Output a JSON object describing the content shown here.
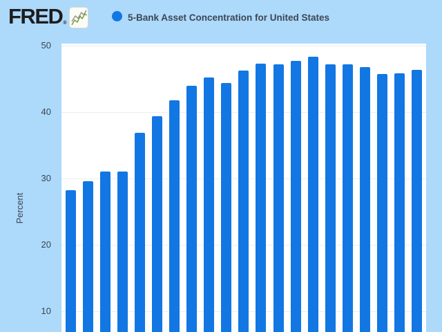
{
  "header": {
    "logo_text": "FRED",
    "registered_mark": "®",
    "logo_icon": "line-chart-icon",
    "legend_marker": "blue-dot"
  },
  "chart_data": {
    "type": "bar",
    "series": [
      {
        "name": "5-Bank Asset Concentration for United States",
        "values": [
          28.2,
          29.6,
          31.0,
          31.0,
          36.9,
          39.4,
          41.8,
          44.0,
          45.2,
          44.4,
          46.2,
          47.3,
          47.2,
          47.7,
          48.3,
          47.2,
          47.2,
          46.8,
          45.7,
          45.8,
          46.4
        ]
      }
    ],
    "ylabel": "Percent",
    "y_ticks": [
      50,
      40,
      30,
      20,
      10
    ],
    "y_axis_visible_range": [
      6.9,
      50.3
    ],
    "x_labels_visible": false,
    "grid": true,
    "legend_position": "top",
    "bar_count": 21
  },
  "colors": {
    "background": "#add9fb",
    "plot_background": "#ffffff",
    "bar": "#1277e3",
    "legend_dot": "#1277e3",
    "gridline": "#eaedef",
    "axis_text": "#3a4550",
    "title_text": "#3b4753",
    "logo_text": "#1d1d1d",
    "logo_icon_green": "#7f9c48",
    "logo_icon_gray": "#9a9a92"
  }
}
